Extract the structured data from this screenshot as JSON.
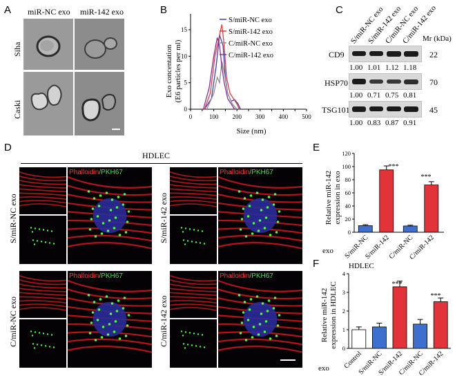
{
  "panels": {
    "A": "A",
    "B": "B",
    "C": "C",
    "D": "D",
    "E": "E",
    "F": "F"
  },
  "panelA": {
    "cols": [
      "miR-NC exo",
      "miR-142 exo"
    ],
    "rows": [
      "Siha",
      "Caski"
    ]
  },
  "panelB": {
    "ylabel_line1": "Exo concentation",
    "ylabel_line2": "(E6 particles per ml)",
    "xlabel": "Size (nm)"
  },
  "panelC": {
    "lanes": [
      "S/miR-NC exo",
      "S/miR-142 exo",
      "C/miR-NC exo",
      "C/miR-142 exo"
    ],
    "mr_label": "Mr (kDa)",
    "blots": [
      {
        "name": "CD9",
        "mr": "22",
        "values": [
          "1.00",
          "1.01",
          "1.12",
          "1.18"
        ]
      },
      {
        "name": "HSP70",
        "mr": "70",
        "values": [
          "1.00",
          "0.71",
          "0.75",
          "0.81"
        ]
      },
      {
        "name": "TSG101",
        "mr": "45",
        "values": []
      }
    ],
    "tsg_values": [
      "1.00",
      "0.83",
      "0.87",
      "0.91"
    ]
  },
  "panelD": {
    "title": "HDLEC",
    "stain_red": "Phalloidin",
    "stain_sep": "/",
    "stain_green": "PKH67",
    "groups": [
      "S/miR-NC exo",
      "S/miR-142 exo",
      "C/miR-NC exo",
      "C/miR-142 exo"
    ]
  },
  "panelE": {
    "ylabel_line1": "Relative miR-142",
    "ylabel_line2": "expression in exo",
    "row_label": "exo",
    "sig": [
      "***",
      "***"
    ]
  },
  "panelF": {
    "title": "HDLEC",
    "ylabel_line1": "Relative miR-142",
    "ylabel_line2": "expression in HDLEC",
    "row_label": "exo",
    "sig": [
      "***",
      "***"
    ]
  },
  "chart_data": [
    {
      "type": "line",
      "panel": "B",
      "title": "",
      "xlabel": "Size (nm)",
      "ylabel": "Exo concentation (E6 particles per ml)",
      "xlim": [
        0,
        500
      ],
      "ylim": [
        0,
        18
      ],
      "xticks": [
        "0",
        "50",
        "100",
        "150",
        "200",
        "250",
        "300",
        "350",
        "400",
        "450",
        "500"
      ],
      "yticks": [
        "0",
        "5",
        "10",
        "15"
      ],
      "legend": "top-right",
      "series": [
        {
          "name": "S/miR-NC exo",
          "color": "#3b3bb5",
          "x": [
            60,
            90,
            110,
            125,
            140,
            150,
            160,
            175,
            190,
            205,
            215
          ],
          "y": [
            0,
            2,
            8,
            14,
            12,
            6,
            3,
            1.5,
            1.8,
            1,
            0
          ]
        },
        {
          "name": "S/miR-142 exo",
          "color": "#e03b3b",
          "x": [
            60,
            85,
            105,
            120,
            135,
            145,
            155,
            170,
            185,
            200,
            210
          ],
          "y": [
            0,
            3,
            10,
            13,
            16,
            12,
            6,
            3,
            2,
            1,
            0
          ]
        },
        {
          "name": "C/miR-NC exo",
          "color": "#8c8c8c",
          "x": [
            70,
            100,
            115,
            125,
            135,
            145,
            160,
            180,
            200
          ],
          "y": [
            0,
            3,
            6,
            5,
            9,
            7,
            3,
            1,
            0
          ]
        },
        {
          "name": "C/miR-142 exo",
          "color": "#8a2a9a",
          "x": [
            55,
            80,
            100,
            115,
            125,
            135,
            145,
            160,
            175,
            190
          ],
          "y": [
            0,
            4,
            10,
            13.5,
            12,
            8,
            5,
            2,
            1,
            0
          ]
        }
      ]
    },
    {
      "type": "bar",
      "panel": "E",
      "categories": [
        "S/miR-NC",
        "S/miR-142",
        "C/miR-NC",
        "C/miR-142"
      ],
      "values": [
        10,
        95,
        9.5,
        72
      ],
      "errors": [
        1.5,
        6,
        1.2,
        5
      ],
      "colors": [
        "#3d6fcf",
        "#e2333a",
        "#3d6fcf",
        "#e2333a"
      ],
      "ylabel": "Relative miR-142 expression in exo",
      "ylim": [
        0,
        120
      ],
      "yticks": [
        "0",
        "20",
        "40",
        "60",
        "80",
        "100",
        "120"
      ]
    },
    {
      "type": "bar",
      "panel": "F",
      "title": "HDLEC",
      "categories": [
        "Control",
        "S/miR-NC",
        "S/miR-142",
        "C/miR-NC",
        "C/miR-142"
      ],
      "values": [
        1.0,
        1.15,
        3.3,
        1.3,
        2.5
      ],
      "errors": [
        0.15,
        0.2,
        0.3,
        0.25,
        0.2
      ],
      "colors": [
        "#ffffff",
        "#3d6fcf",
        "#e2333a",
        "#3d6fcf",
        "#e2333a"
      ],
      "ylabel": "Relative miR-142 expression in HDLEC",
      "ylim": [
        0,
        4
      ],
      "yticks": [
        "0",
        "1",
        "2",
        "3",
        "4"
      ]
    }
  ]
}
